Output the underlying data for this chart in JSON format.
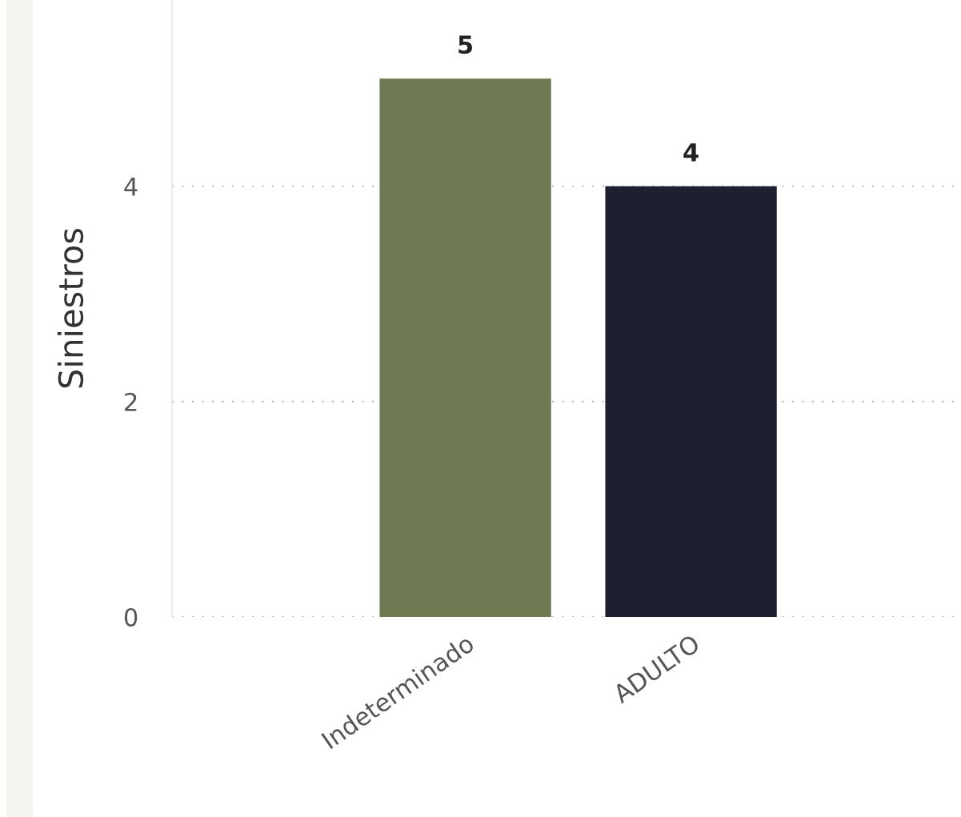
{
  "chart_data": {
    "type": "bar",
    "ylabel": "Siniestros",
    "categories": [
      "Indeterminado",
      "ADULTO"
    ],
    "values": [
      5,
      4
    ],
    "colors": [
      "#6f7a52",
      "#1e1f30"
    ],
    "ylim": [
      0,
      5.73
    ],
    "yticks": [
      0,
      2,
      4
    ],
    "grid": "y",
    "data_labels": true
  }
}
